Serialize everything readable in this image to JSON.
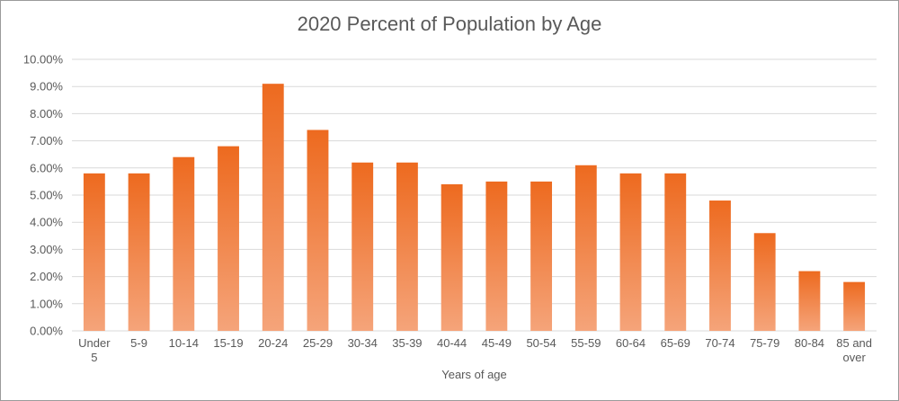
{
  "chart_data": {
    "type": "bar",
    "title": "2020 Percent of Population by Age",
    "xlabel": "Years of age",
    "ylabel": "",
    "categories": [
      "Under 5",
      "5-9",
      "10-14",
      "15-19",
      "20-24",
      "25-29",
      "30-34",
      "35-39",
      "40-44",
      "45-49",
      "50-54",
      "55-59",
      "60-64",
      "65-69",
      "70-74",
      "75-79",
      "80-84",
      "85 and over"
    ],
    "category_label_lines": [
      [
        "Under",
        "5"
      ],
      [
        "5-9"
      ],
      [
        "10-14"
      ],
      [
        "15-19"
      ],
      [
        "20-24"
      ],
      [
        "25-29"
      ],
      [
        "30-34"
      ],
      [
        "35-39"
      ],
      [
        "40-44"
      ],
      [
        "45-49"
      ],
      [
        "50-54"
      ],
      [
        "55-59"
      ],
      [
        "60-64"
      ],
      [
        "65-69"
      ],
      [
        "70-74"
      ],
      [
        "75-79"
      ],
      [
        "80-84"
      ],
      [
        "85 and",
        "over"
      ]
    ],
    "values": [
      5.8,
      5.8,
      6.4,
      6.8,
      9.1,
      7.4,
      6.2,
      6.2,
      5.4,
      5.5,
      5.5,
      6.1,
      5.8,
      5.8,
      4.8,
      3.6,
      2.2,
      1.8
    ],
    "y_ticks": [
      "0.00%",
      "1.00%",
      "2.00%",
      "3.00%",
      "4.00%",
      "5.00%",
      "6.00%",
      "7.00%",
      "8.00%",
      "9.00%",
      "10.00%"
    ],
    "ylim": [
      0,
      10
    ],
    "grid": true,
    "legend": "none",
    "bar_color_top": "#ed6a1f",
    "bar_color_bottom": "#f5a47a",
    "grid_color": "#d9d9d9"
  }
}
